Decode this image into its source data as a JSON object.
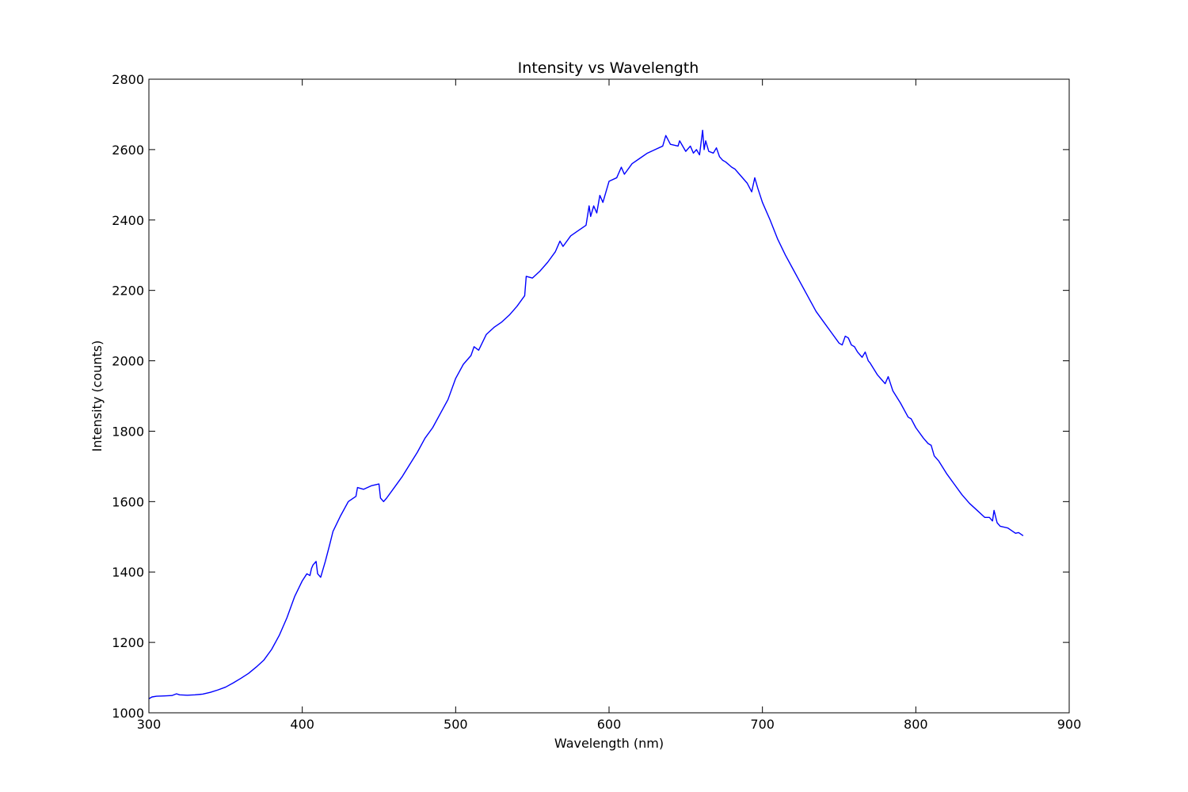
{
  "chart_data": {
    "type": "line",
    "title": "Intensity vs Wavelength",
    "xlabel": "Wavelength (nm)",
    "ylabel": "Intensity (counts)",
    "xlim": [
      300,
      900
    ],
    "ylim": [
      1000,
      2800
    ],
    "xticks": [
      "300",
      "400",
      "500",
      "600",
      "700",
      "800",
      "900"
    ],
    "yticks": [
      "1000",
      "1200",
      "1400",
      "1600",
      "1800",
      "2000",
      "2200",
      "2400",
      "2600",
      "2800"
    ],
    "grid": false,
    "legend": "none",
    "series": [
      {
        "color": "#0000ff",
        "x": [
          300,
          302,
          305,
          310,
          315,
          318,
          320,
          325,
          330,
          335,
          340,
          345,
          350,
          355,
          360,
          365,
          370,
          375,
          380,
          385,
          390,
          395,
          400,
          403,
          405,
          406,
          407,
          409,
          410,
          412,
          413,
          415,
          418,
          420,
          425,
          430,
          435,
          436,
          440,
          445,
          450,
          451,
          453,
          455,
          460,
          465,
          470,
          475,
          480,
          485,
          490,
          495,
          500,
          505,
          510,
          512,
          515,
          520,
          525,
          530,
          535,
          540,
          545,
          546,
          550,
          555,
          560,
          565,
          568,
          570,
          575,
          580,
          585,
          587,
          588,
          590,
          592,
          594,
          596,
          598,
          600,
          605,
          608,
          610,
          615,
          620,
          625,
          630,
          635,
          637,
          640,
          645,
          646,
          650,
          653,
          655,
          657,
          659,
          661,
          662,
          663,
          665,
          668,
          670,
          672,
          674,
          676,
          680,
          682,
          685,
          690,
          693,
          695,
          697,
          700,
          705,
          710,
          715,
          720,
          725,
          730,
          735,
          740,
          745,
          750,
          752,
          754,
          756,
          758,
          760,
          762,
          765,
          767,
          769,
          770,
          775,
          778,
          780,
          782,
          785,
          790,
          795,
          797,
          800,
          805,
          808,
          810,
          812,
          815,
          820,
          825,
          830,
          835,
          840,
          845,
          848,
          850,
          851,
          853,
          855,
          860,
          865,
          867,
          870
        ],
        "y": [
          1040,
          1045,
          1047,
          1048,
          1049,
          1054,
          1051,
          1050,
          1051,
          1053,
          1058,
          1065,
          1073,
          1085,
          1098,
          1112,
          1130,
          1150,
          1180,
          1220,
          1270,
          1330,
          1375,
          1395,
          1390,
          1410,
          1420,
          1430,
          1395,
          1385,
          1400,
          1430,
          1480,
          1515,
          1560,
          1600,
          1615,
          1640,
          1635,
          1645,
          1650,
          1610,
          1600,
          1610,
          1640,
          1670,
          1705,
          1740,
          1780,
          1810,
          1850,
          1890,
          1950,
          1990,
          2015,
          2040,
          2030,
          2075,
          2095,
          2110,
          2130,
          2155,
          2185,
          2240,
          2235,
          2255,
          2280,
          2310,
          2340,
          2325,
          2355,
          2370,
          2385,
          2440,
          2410,
          2440,
          2420,
          2470,
          2450,
          2480,
          2510,
          2520,
          2550,
          2530,
          2560,
          2575,
          2590,
          2600,
          2610,
          2640,
          2615,
          2610,
          2625,
          2595,
          2610,
          2590,
          2600,
          2585,
          2655,
          2600,
          2625,
          2595,
          2590,
          2605,
          2580,
          2570,
          2565,
          2550,
          2545,
          2530,
          2505,
          2480,
          2520,
          2490,
          2450,
          2400,
          2345,
          2300,
          2260,
          2220,
          2180,
          2140,
          2110,
          2080,
          2050,
          2045,
          2070,
          2065,
          2045,
          2040,
          2025,
          2010,
          2025,
          2000,
          1995,
          1960,
          1945,
          1935,
          1955,
          1915,
          1880,
          1840,
          1835,
          1810,
          1780,
          1765,
          1760,
          1730,
          1715,
          1680,
          1650,
          1620,
          1595,
          1575,
          1555,
          1555,
          1545,
          1575,
          1540,
          1530,
          1525,
          1510,
          1512,
          1503
        ]
      }
    ]
  }
}
